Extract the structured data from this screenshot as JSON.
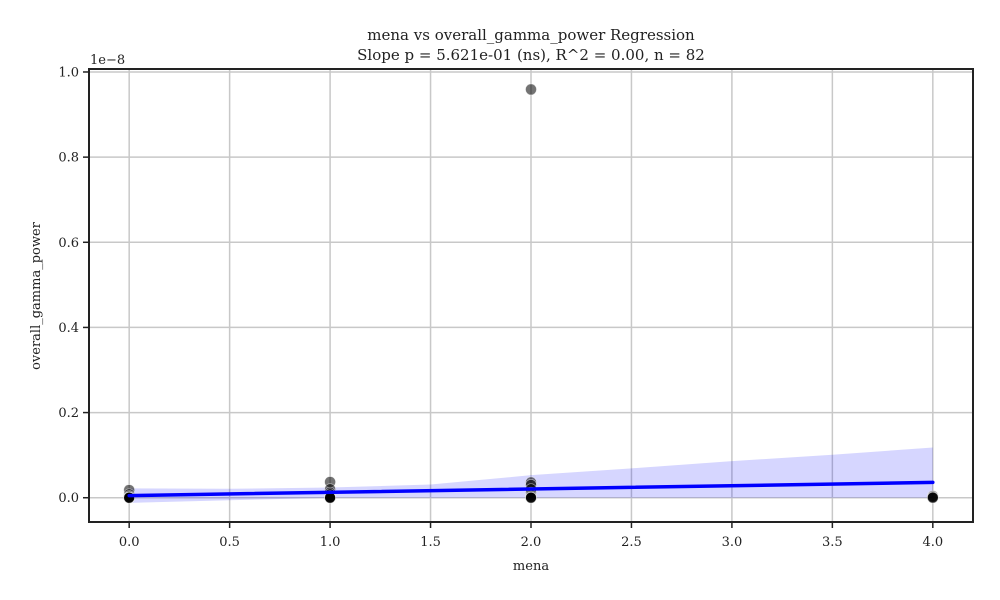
{
  "chart_data": {
    "type": "scatter",
    "title": "mena vs overall_gamma_power Regression",
    "subtitle": "Slope p = 5.621e-01 (ns), R^2 = 0.00, n = 82",
    "xlabel": "mena",
    "ylabel": "overall_gamma_power",
    "y_offset_label": "1e−8",
    "xlim": [
      -0.2,
      4.2
    ],
    "ylim": [
      -0.057,
      1.007
    ],
    "x_ticks": [
      0.0,
      0.5,
      1.0,
      1.5,
      2.0,
      2.5,
      3.0,
      3.5,
      4.0
    ],
    "x_tick_labels": [
      "0.0",
      "0.5",
      "1.0",
      "1.5",
      "2.0",
      "2.5",
      "3.0",
      "3.5",
      "4.0"
    ],
    "y_ticks": [
      0.0,
      0.2,
      0.4,
      0.6,
      0.8,
      1.0
    ],
    "y_tick_labels": [
      "0.0",
      "0.2",
      "0.4",
      "0.6",
      "0.8",
      "1.0"
    ],
    "grid": true,
    "points": [
      {
        "x": 0,
        "y": 0.018
      },
      {
        "x": 0,
        "y": 0.008
      },
      {
        "x": 0,
        "y": 0.004
      },
      {
        "x": 0,
        "y": 0.002
      },
      {
        "x": 0,
        "y": 0.001
      },
      {
        "x": 0,
        "y": 0.0
      },
      {
        "x": 0,
        "y": 0.0
      },
      {
        "x": 0,
        "y": 0.0
      },
      {
        "x": 1,
        "y": 0.037
      },
      {
        "x": 1,
        "y": 0.02
      },
      {
        "x": 1,
        "y": 0.012
      },
      {
        "x": 1,
        "y": 0.008
      },
      {
        "x": 1,
        "y": 0.004
      },
      {
        "x": 1,
        "y": 0.002
      },
      {
        "x": 1,
        "y": 0.001
      },
      {
        "x": 1,
        "y": 0.0
      },
      {
        "x": 1,
        "y": 0.0
      },
      {
        "x": 1,
        "y": 0.0
      },
      {
        "x": 2,
        "y": 0.959
      },
      {
        "x": 2,
        "y": 0.036
      },
      {
        "x": 2,
        "y": 0.03
      },
      {
        "x": 2,
        "y": 0.02
      },
      {
        "x": 2,
        "y": 0.012
      },
      {
        "x": 2,
        "y": 0.006
      },
      {
        "x": 2,
        "y": 0.003
      },
      {
        "x": 2,
        "y": 0.001
      },
      {
        "x": 2,
        "y": 0.0
      },
      {
        "x": 2,
        "y": 0.0
      },
      {
        "x": 4,
        "y": 0.004
      },
      {
        "x": 4,
        "y": 0.002
      },
      {
        "x": 4,
        "y": 0.001
      },
      {
        "x": 4,
        "y": 0.0
      }
    ],
    "regression": {
      "x": [
        0,
        4
      ],
      "y": [
        0.005,
        0.036
      ]
    },
    "confidence_band": {
      "x": [
        0,
        0.5,
        1,
        1.5,
        2,
        2.5,
        3,
        3.5,
        4
      ],
      "upper": [
        0.022,
        0.021,
        0.024,
        0.031,
        0.053,
        0.069,
        0.086,
        0.101,
        0.118
      ],
      "lower": [
        -0.012,
        -0.006,
        0.0,
        0.0,
        0.0,
        0.0,
        0.0,
        0.0,
        0.0
      ]
    },
    "colors": {
      "points": "#000000",
      "regression_line": "#0000ff",
      "band": "#0000ff",
      "grid": "#c8c8c8",
      "frame": "#222222"
    }
  }
}
